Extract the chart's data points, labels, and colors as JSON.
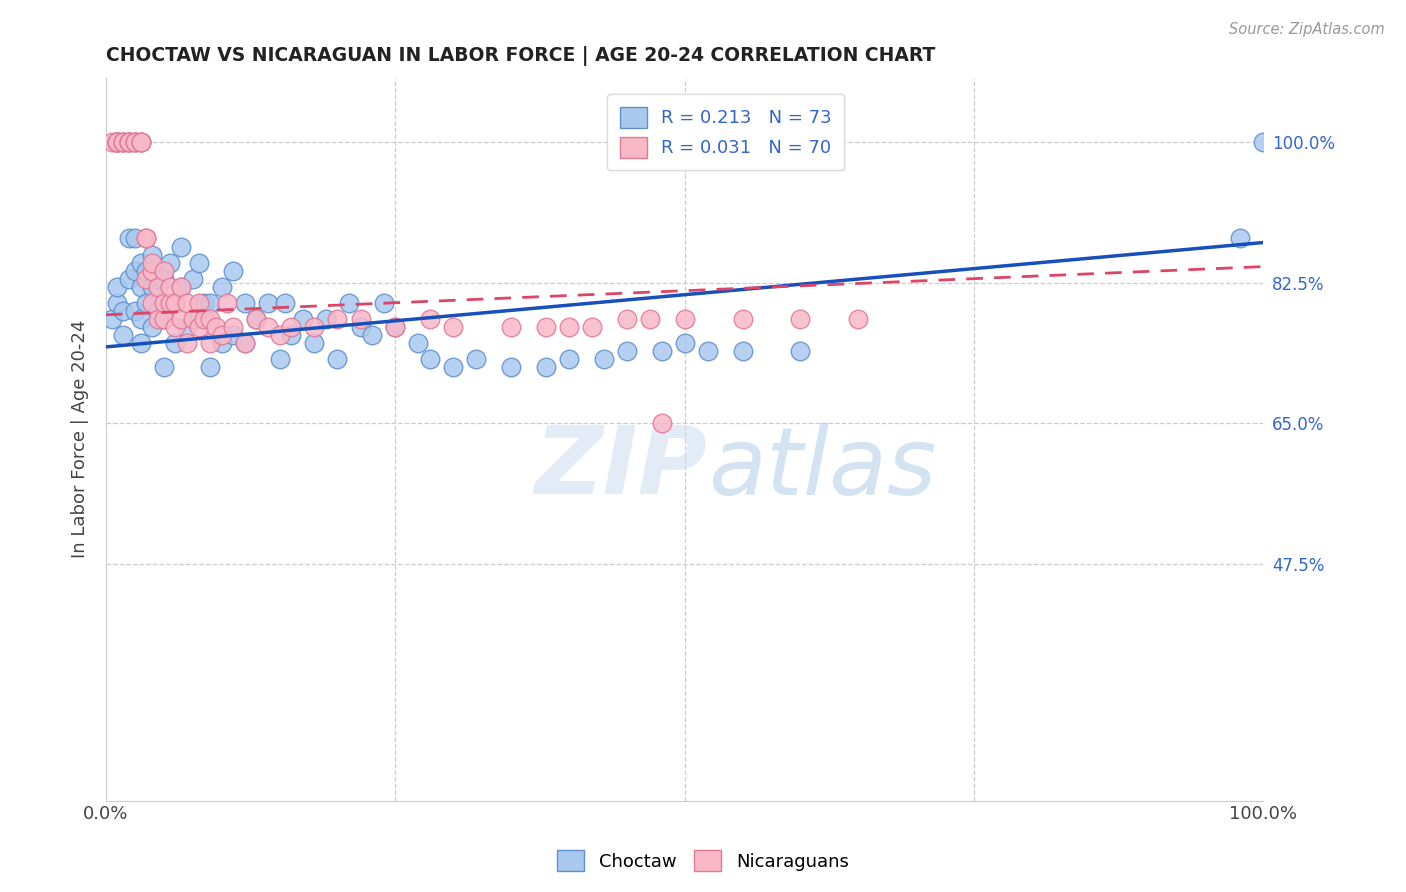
{
  "title": "CHOCTAW VS NICARAGUAN IN LABOR FORCE | AGE 20-24 CORRELATION CHART",
  "source": "Source: ZipAtlas.com",
  "ylabel": "In Labor Force | Age 20-24",
  "ytick_labels": [
    "100.0%",
    "82.5%",
    "65.0%",
    "47.5%"
  ],
  "ytick_vals": [
    1.0,
    0.825,
    0.65,
    0.475
  ],
  "xlim": [
    0.0,
    1.0
  ],
  "ylim": [
    0.18,
    1.08
  ],
  "choctaw_color": "#A8C8EE",
  "nicaraguan_color": "#F8B8C8",
  "choctaw_edge": "#6090CC",
  "nicaraguan_edge": "#E07898",
  "trendline_choctaw": "#1850BB",
  "trendline_nicaraguan": "#DD4466",
  "R_choctaw": 0.213,
  "N_choctaw": 73,
  "R_nicaraguan": 0.031,
  "N_nicaraguan": 70,
  "watermark_zip": "ZIP",
  "watermark_atlas": "atlas",
  "background_color": "#ffffff",
  "grid_color": "#cccccc",
  "choctaw_x": [
    0.005,
    0.01,
    0.01,
    0.015,
    0.015,
    0.02,
    0.02,
    0.025,
    0.025,
    0.025,
    0.03,
    0.03,
    0.03,
    0.03,
    0.035,
    0.035,
    0.04,
    0.04,
    0.04,
    0.045,
    0.045,
    0.05,
    0.05,
    0.05,
    0.055,
    0.055,
    0.06,
    0.06,
    0.065,
    0.065,
    0.07,
    0.075,
    0.08,
    0.08,
    0.085,
    0.09,
    0.09,
    0.1,
    0.1,
    0.11,
    0.11,
    0.12,
    0.12,
    0.13,
    0.14,
    0.15,
    0.155,
    0.16,
    0.17,
    0.18,
    0.19,
    0.2,
    0.21,
    0.22,
    0.23,
    0.24,
    0.25,
    0.27,
    0.28,
    0.3,
    0.32,
    0.35,
    0.38,
    0.4,
    0.43,
    0.45,
    0.48,
    0.5,
    0.52,
    0.55,
    0.6,
    0.98,
    1.0
  ],
  "choctaw_y": [
    0.78,
    0.8,
    0.82,
    0.76,
    0.79,
    0.83,
    0.88,
    0.79,
    0.84,
    0.88,
    0.75,
    0.78,
    0.82,
    0.85,
    0.8,
    0.84,
    0.77,
    0.82,
    0.86,
    0.79,
    0.83,
    0.72,
    0.78,
    0.83,
    0.8,
    0.85,
    0.75,
    0.8,
    0.82,
    0.87,
    0.77,
    0.83,
    0.78,
    0.85,
    0.8,
    0.72,
    0.8,
    0.75,
    0.82,
    0.76,
    0.84,
    0.75,
    0.8,
    0.78,
    0.8,
    0.73,
    0.8,
    0.76,
    0.78,
    0.75,
    0.78,
    0.73,
    0.8,
    0.77,
    0.76,
    0.8,
    0.77,
    0.75,
    0.73,
    0.72,
    0.73,
    0.72,
    0.72,
    0.73,
    0.73,
    0.74,
    0.74,
    0.75,
    0.74,
    0.74,
    0.74,
    0.88,
    1.0
  ],
  "nicaraguan_x": [
    0.005,
    0.01,
    0.01,
    0.01,
    0.01,
    0.01,
    0.015,
    0.015,
    0.015,
    0.02,
    0.02,
    0.02,
    0.02,
    0.025,
    0.025,
    0.025,
    0.03,
    0.03,
    0.03,
    0.035,
    0.035,
    0.035,
    0.04,
    0.04,
    0.04,
    0.045,
    0.045,
    0.05,
    0.05,
    0.05,
    0.055,
    0.055,
    0.06,
    0.06,
    0.065,
    0.065,
    0.07,
    0.07,
    0.075,
    0.08,
    0.08,
    0.085,
    0.09,
    0.09,
    0.095,
    0.1,
    0.105,
    0.11,
    0.12,
    0.13,
    0.14,
    0.15,
    0.16,
    0.18,
    0.2,
    0.22,
    0.25,
    0.28,
    0.3,
    0.35,
    0.38,
    0.4,
    0.42,
    0.45,
    0.47,
    0.48,
    0.5,
    0.55,
    0.6,
    0.65
  ],
  "nicaraguan_y": [
    1.0,
    1.0,
    1.0,
    1.0,
    1.0,
    1.0,
    1.0,
    1.0,
    1.0,
    1.0,
    1.0,
    1.0,
    1.0,
    1.0,
    1.0,
    1.0,
    1.0,
    1.0,
    1.0,
    0.88,
    0.88,
    0.83,
    0.84,
    0.8,
    0.85,
    0.78,
    0.82,
    0.78,
    0.8,
    0.84,
    0.8,
    0.82,
    0.77,
    0.8,
    0.78,
    0.82,
    0.75,
    0.8,
    0.78,
    0.77,
    0.8,
    0.78,
    0.75,
    0.78,
    0.77,
    0.76,
    0.8,
    0.77,
    0.75,
    0.78,
    0.77,
    0.76,
    0.77,
    0.77,
    0.78,
    0.78,
    0.77,
    0.78,
    0.77,
    0.77,
    0.77,
    0.77,
    0.77,
    0.78,
    0.78,
    0.65,
    0.78,
    0.78,
    0.78,
    0.78
  ]
}
